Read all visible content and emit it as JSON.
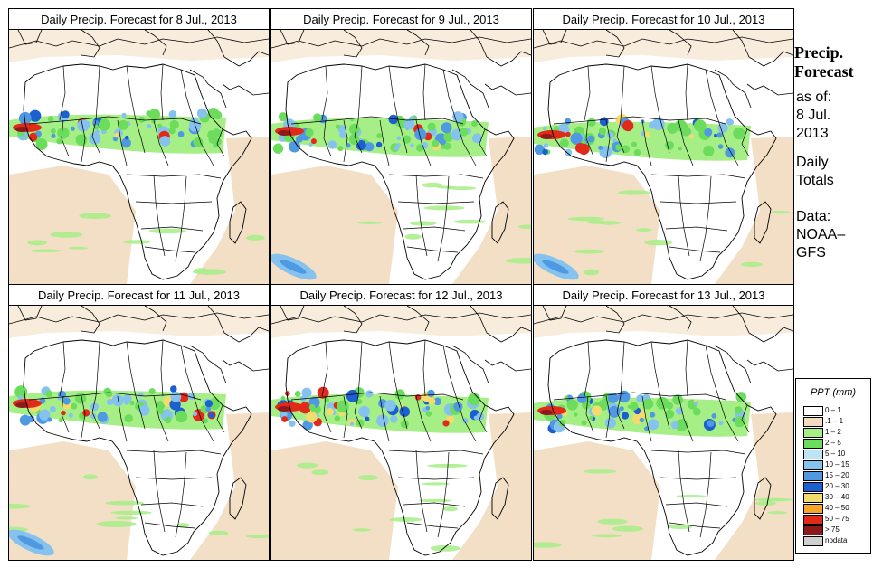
{
  "panels": [
    {
      "title": "Daily Precip. Forecast for  8 Jul., 2013"
    },
    {
      "title": "Daily Precip. Forecast for  9 Jul., 2013"
    },
    {
      "title": "Daily Precip. Forecast for  10 Jul., 2013"
    },
    {
      "title": "Daily Precip. Forecast for  11 Jul., 2013"
    },
    {
      "title": "Daily Precip. Forecast for  12 Jul., 2013"
    },
    {
      "title": "Daily Precip. Forecast for  13 Jul., 2013"
    }
  ],
  "sidebar": {
    "title_line1": "Precip.",
    "title_line2": "Forecast",
    "asof_line1": "as of:",
    "asof_line2": "8 Jul.",
    "asof_line3": "2013",
    "daily_line1": "Daily",
    "daily_line2": "Totals",
    "data_line1": "Data:",
    "data_line2": "NOAA–",
    "data_line3": "GFS"
  },
  "legend": {
    "title": "PPT (mm)",
    "entries": [
      {
        "label": "0 – 1",
        "color": "#ffffff"
      },
      {
        "label": ".1 – 1",
        "color": "#f2dcc0"
      },
      {
        "label": "1 – 2",
        "color": "#a6ef86"
      },
      {
        "label": "2 – 5",
        "color": "#6cdc5c"
      },
      {
        "label": "5 – 10",
        "color": "#bde3f5"
      },
      {
        "label": "10 – 15",
        "color": "#86c2ee"
      },
      {
        "label": "15 – 20",
        "color": "#4f98e2"
      },
      {
        "label": "20 – 30",
        "color": "#1b5fd0"
      },
      {
        "label": "30 – 40",
        "color": "#f4dc6c"
      },
      {
        "label": "40 – 50",
        "color": "#f7a52b"
      },
      {
        "label": "50 – 75",
        "color": "#e22a1a"
      },
      {
        "label": "> 75",
        "color": "#8c1a1a"
      },
      {
        "label": "nodata",
        "color": "#cfcfcf"
      }
    ]
  }
}
